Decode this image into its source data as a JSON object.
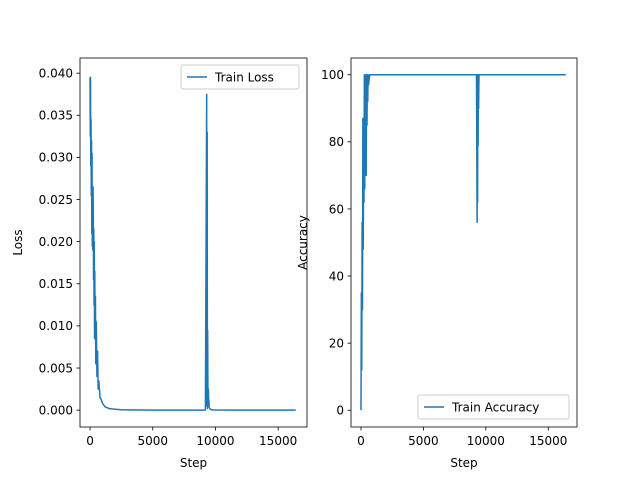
{
  "chart_data": [
    {
      "type": "line",
      "title": "",
      "xlabel": "Step",
      "ylabel": "Loss",
      "xlim": [
        -800,
        17300
      ],
      "ylim": [
        -0.002,
        0.0418
      ],
      "xticks": [
        0,
        5000,
        10000,
        15000
      ],
      "xtick_labels": [
        "0",
        "5000",
        "10000",
        "15000"
      ],
      "yticks": [
        0.0,
        0.005,
        0.01,
        0.015,
        0.02,
        0.025,
        0.03,
        0.035,
        0.04
      ],
      "ytick_labels": [
        "0.000",
        "0.005",
        "0.010",
        "0.015",
        "0.020",
        "0.025",
        "0.030",
        "0.035",
        "0.040"
      ],
      "grid": false,
      "legend_position": "upper right",
      "series": [
        {
          "name": "Train Loss",
          "color": "#1f77b4",
          "x": [
            0,
            20,
            40,
            60,
            80,
            100,
            120,
            140,
            160,
            180,
            200,
            220,
            240,
            260,
            280,
            300,
            320,
            340,
            360,
            380,
            400,
            430,
            460,
            500,
            550,
            600,
            650,
            700,
            800,
            900,
            1000,
            1200,
            1500,
            2000,
            2500,
            3000,
            4000,
            5000,
            6000,
            7000,
            8000,
            9000,
            9200,
            9300,
            9320,
            9340,
            9360,
            9380,
            9400,
            9420,
            9440,
            9460,
            9480,
            9500,
            9550,
            9600,
            9700,
            9800,
            10000,
            11000,
            12000,
            13000,
            14000,
            15000,
            16400
          ],
          "y": [
            0.0395,
            0.0325,
            0.0395,
            0.029,
            0.0345,
            0.0255,
            0.032,
            0.021,
            0.0305,
            0.0195,
            0.024,
            0.019,
            0.0265,
            0.0235,
            0.0155,
            0.0215,
            0.0125,
            0.02,
            0.0085,
            0.0165,
            0.0095,
            0.0135,
            0.0055,
            0.0105,
            0.004,
            0.007,
            0.0025,
            0.0035,
            0.0015,
            0.0012,
            0.0008,
            0.0004,
            0.0002,
            0.0001,
            5e-05,
            3e-05,
            2e-05,
            1e-05,
            1e-05,
            1e-05,
            1e-05,
            1e-05,
            2e-05,
            0.0375,
            0.0005,
            0.033,
            0.0002,
            0.0095,
            0.002,
            0.0008,
            0.0025,
            0.0005,
            0.0012,
            0.0003,
            0.0002,
            0.0001,
            5e-05,
            3e-05,
            2e-05,
            1e-05,
            1e-05,
            1e-05,
            1e-05,
            1e-05,
            1e-05
          ]
        }
      ]
    },
    {
      "type": "line",
      "title": "",
      "xlabel": "Step",
      "ylabel": "Accuracy",
      "xlim": [
        -800,
        17300
      ],
      "ylim": [
        -5,
        105
      ],
      "xticks": [
        0,
        5000,
        10000,
        15000
      ],
      "xtick_labels": [
        "0",
        "5000",
        "10000",
        "15000"
      ],
      "yticks": [
        0,
        20,
        40,
        60,
        80,
        100
      ],
      "ytick_labels": [
        "0",
        "20",
        "40",
        "60",
        "80",
        "100"
      ],
      "grid": false,
      "legend_position": "lower right",
      "series": [
        {
          "name": "Train Accuracy",
          "color": "#1f77b4",
          "x": [
            0,
            30,
            60,
            90,
            120,
            150,
            180,
            210,
            240,
            270,
            300,
            330,
            360,
            390,
            420,
            450,
            480,
            510,
            540,
            570,
            600,
            700,
            800,
            1000,
            2000,
            5000,
            9000,
            9250,
            9300,
            9320,
            9340,
            9360,
            9380,
            9400,
            9420,
            9450,
            9500,
            9600,
            10000,
            16400
          ],
          "y": [
            0,
            35,
            12,
            56,
            30,
            87,
            48,
            73,
            62,
            100,
            66,
            95,
            81,
            100,
            70,
            100,
            85,
            100,
            92,
            100,
            97,
            100,
            100,
            100,
            100,
            100,
            100,
            100,
            56,
            100,
            62,
            100,
            79,
            100,
            90,
            100,
            100,
            100,
            100,
            100
          ]
        }
      ]
    }
  ]
}
